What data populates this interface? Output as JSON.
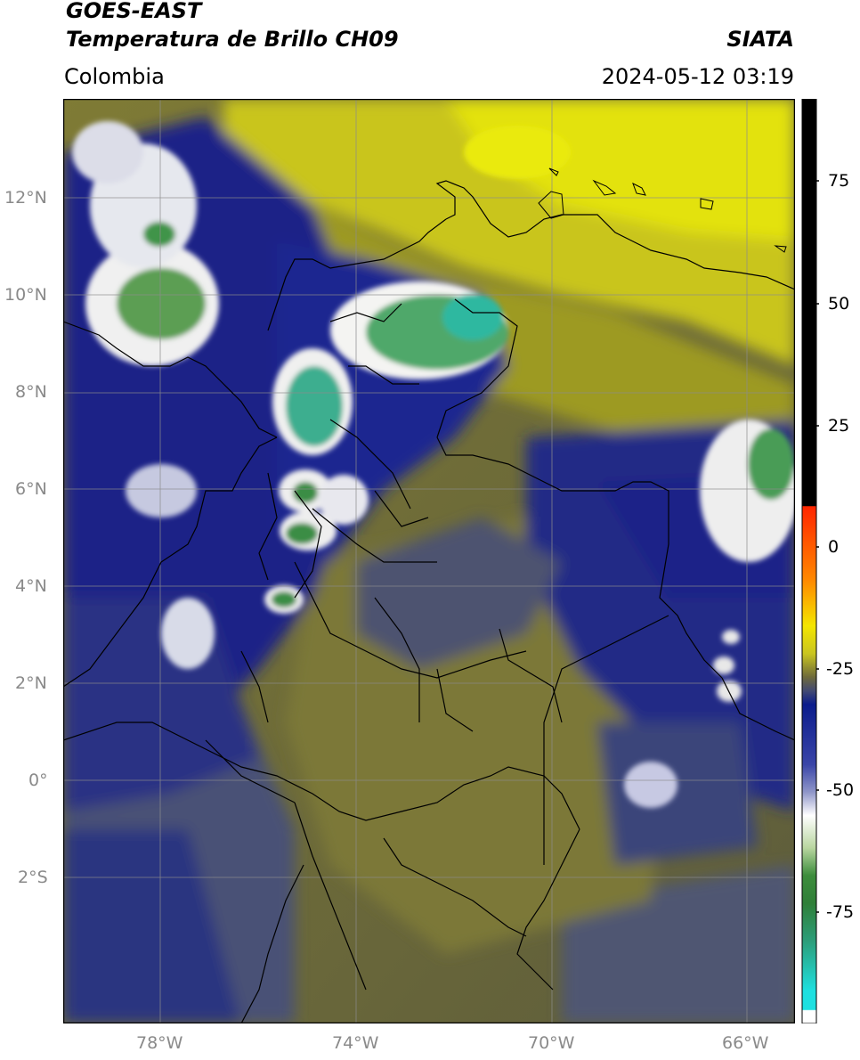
{
  "header": {
    "satellite": "GOES-EAST",
    "product": "Temperatura de Brillo CH09",
    "region": "Colombia",
    "source": "SIATA",
    "datetime": "2024-05-12 03:19"
  },
  "map": {
    "lat_labels": [
      "12°N",
      "10°N",
      "8°N",
      "6°N",
      "4°N",
      "2°N",
      "0°",
      "2°S"
    ],
    "lon_labels": [
      "78°W",
      "74°W",
      "70°W",
      "66°W"
    ],
    "gridline_color": "#8c8c8c",
    "colors": {
      "yellow_dry": "#e3e20c",
      "olive": "#8f8a2a",
      "dark_olive": "#5f5d3a",
      "slate": "#47507a",
      "navy": "#121f86",
      "white_cold": "#f2f2f2",
      "green_cold": "#2e8b3d",
      "teal_coldest": "#2fb8a0"
    }
  },
  "colorbar": {
    "ticks": [
      "75",
      "50",
      "25",
      "0",
      "-25",
      "-50",
      "-75"
    ],
    "range": [
      -100,
      90
    ],
    "units": ""
  }
}
